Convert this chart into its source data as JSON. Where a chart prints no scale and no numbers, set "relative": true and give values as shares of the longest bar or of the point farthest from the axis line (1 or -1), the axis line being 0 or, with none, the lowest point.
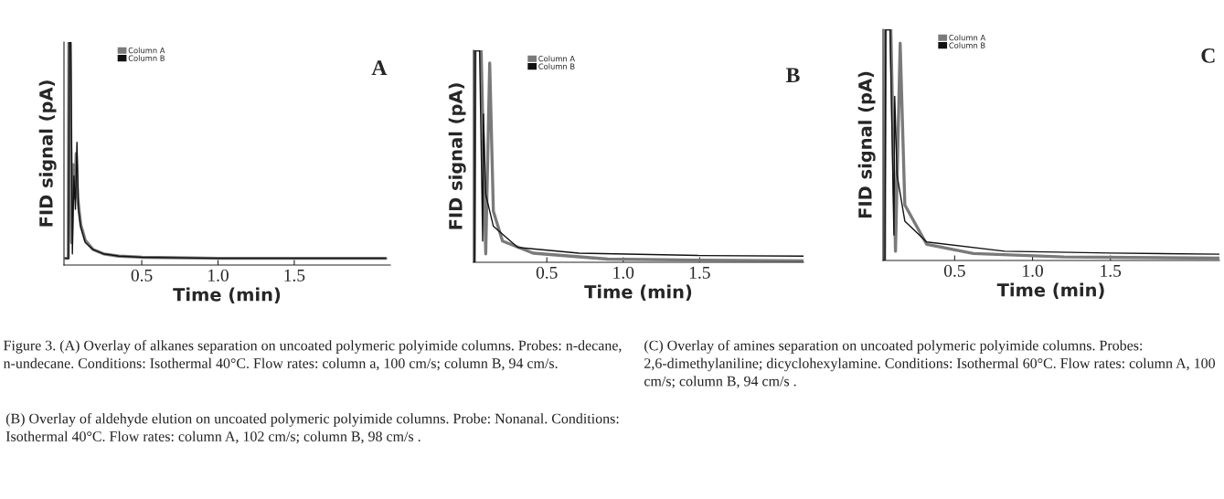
{
  "chart_data": [
    {
      "type": "line",
      "title": "A",
      "xlabel": "Time (min)",
      "ylabel": "FID signal (pA)",
      "relative": true,
      "xlim": [
        -0.01,
        2.13
      ],
      "xticks": [
        {
          "value": 0.5,
          "label": "0.5"
        },
        {
          "value": 1.0,
          "label": "1.0"
        },
        {
          "value": 1.5,
          "label": "1.5"
        }
      ],
      "tick_labels": "x",
      "legend": "top left",
      "grid": false,
      "series": [
        {
          "name": "Column A",
          "color": "#7a7a7a",
          "x": [
            0,
            0.018,
            0.022,
            0.03,
            0.04,
            0.05,
            0.06,
            0.07,
            0.08,
            0.1,
            0.13,
            0.18,
            0.25,
            0.35,
            0.5,
            1.0,
            1.5,
            2.1
          ],
          "values": [
            0.03,
            0.03,
            1.0,
            1.0,
            0.1,
            0.45,
            0.3,
            0.5,
            0.3,
            0.18,
            0.11,
            0.07,
            0.05,
            0.04,
            0.035,
            0.03,
            0.03,
            0.03
          ]
        },
        {
          "name": "Column B",
          "color": "#111111",
          "x": [
            0,
            0.02,
            0.025,
            0.035,
            0.045,
            0.055,
            0.065,
            0.075,
            0.085,
            0.1,
            0.13,
            0.18,
            0.25,
            0.35,
            0.5,
            1.0,
            1.5,
            2.1
          ],
          "values": [
            0.03,
            0.03,
            1.0,
            1.0,
            0.05,
            0.4,
            0.25,
            0.55,
            0.25,
            0.17,
            0.1,
            0.07,
            0.05,
            0.04,
            0.035,
            0.03,
            0.03,
            0.03
          ]
        }
      ],
      "annotations": [
        "Figure 3. (A) Overlay of alkanes separation on uncoated polymeric polyimide columns. Probes: n-decane, n-undecane. Conditions: Isothermal 40°C. Flow rates: column a, 100 cm/s; column B, 94 cm/s.",
        "(B) Overlay of aldehyde elution on uncoated polymeric polyimide columns. Probe: Nonanal. Conditions: Isothermal 40°C. Flow rates: column A, 102 cm/s; column B, 98 cm/s ."
      ]
    },
    {
      "type": "line",
      "title": "B",
      "xlabel": "Time (min)",
      "ylabel": "FID signal (pA)",
      "relative": true,
      "xlim": [
        0.02,
        2.18
      ],
      "xticks": [
        {
          "value": 0.5,
          "label": "0.5"
        },
        {
          "value": 1.0,
          "label": "1.0"
        },
        {
          "value": 1.5,
          "label": "1.5"
        }
      ],
      "tick_labels": "x",
      "legend": "top left",
      "grid": false,
      "series": [
        {
          "name": "Column A",
          "color": "#7a7a7a",
          "x": [
            0.02,
            0.025,
            0.03,
            0.07,
            0.1,
            0.126,
            0.15,
            0.21,
            0.41,
            0.9,
            1.5,
            2.18
          ],
          "values": [
            0.0,
            0.0,
            1.0,
            1.0,
            0.04,
            0.94,
            0.24,
            0.1,
            0.043,
            0.015,
            0.01,
            0.007
          ]
        },
        {
          "name": "Column B",
          "color": "#111111",
          "x": [
            0.02,
            0.028,
            0.032,
            0.06,
            0.08,
            0.085,
            0.1,
            0.15,
            0.31,
            0.71,
            1.5,
            2.18
          ],
          "values": [
            0.0,
            0.0,
            1.0,
            1.0,
            0.1,
            0.7,
            0.32,
            0.17,
            0.07,
            0.043,
            0.032,
            0.029
          ]
        }
      ]
    },
    {
      "type": "line",
      "title": "C",
      "xlabel": "Time (min)",
      "ylabel": "FID signal (pA)",
      "relative": true,
      "xlim": [
        0.04,
        2.2
      ],
      "xticks": [
        {
          "value": 0.5,
          "label": "0.5"
        },
        {
          "value": 1.0,
          "label": "1.0"
        },
        {
          "value": 1.5,
          "label": "1.5"
        }
      ],
      "tick_labels": "x",
      "legend": "top left",
      "grid": false,
      "series": [
        {
          "name": "Column A",
          "color": "#7a7a7a",
          "x": [
            0.04,
            0.05,
            0.055,
            0.09,
            0.12,
            0.15,
            0.18,
            0.32,
            0.62,
            1.2,
            2.2
          ],
          "values": [
            0.0,
            0.0,
            1.0,
            1.0,
            0.04,
            0.94,
            0.24,
            0.07,
            0.03,
            0.015,
            0.01
          ]
        },
        {
          "name": "Column B",
          "color": "#111111",
          "x": [
            0.04,
            0.052,
            0.057,
            0.085,
            0.11,
            0.115,
            0.13,
            0.18,
            0.32,
            0.82,
            1.5,
            2.2
          ],
          "values": [
            0.0,
            0.0,
            1.0,
            1.0,
            0.11,
            0.71,
            0.37,
            0.17,
            0.08,
            0.04,
            0.032,
            0.027
          ]
        }
      ],
      "annotations": [
        "(C) Overlay of amines separation on uncoated polymeric polyimide columns. Probes: 2,6-dimethylaniline; dicyclohexylamine. Conditions: Isothermal 60°C. Flow rates: column A, 100 cm/s; column B, 94 cm/s ."
      ]
    }
  ]
}
